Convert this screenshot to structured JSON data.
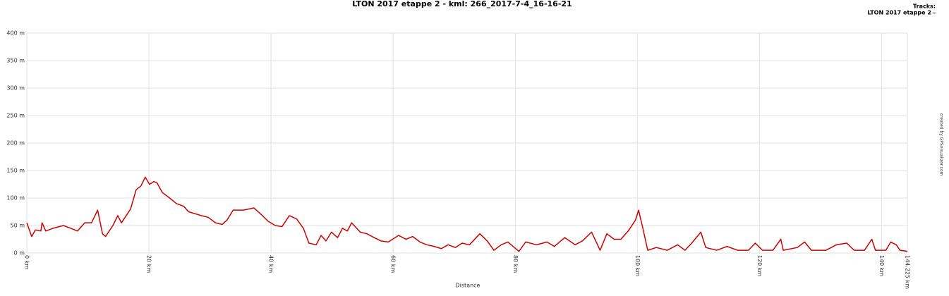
{
  "chart_data": {
    "type": "line",
    "title": "LTON 2017 etappe 2 - kml: 266_2017-7-4_16-16-21",
    "x_label": "Distance",
    "legend_title": "Tracks:",
    "credit": "created by GPSvisualizer.com",
    "legend": "top-right",
    "grid": true,
    "x": [
      0,
      0.8,
      1.4,
      2.3,
      2.5,
      3.1,
      4.3,
      6,
      7.2,
      8.3,
      9.5,
      10.6,
      11.6,
      12.4,
      12.9,
      14.1,
      14.9,
      15.5,
      16.4,
      17,
      17.9,
      18.7,
      19.4,
      20.1,
      20.8,
      21.3,
      22.2,
      23.4,
      24.5,
      25.7,
      26.5,
      27.4,
      28.6,
      29.7,
      30.9,
      32,
      32.8,
      33.8,
      35.5,
      37.2,
      38.4,
      39.5,
      40.7,
      41.8,
      43,
      44.2,
      45.3,
      46.2,
      47.4,
      48.2,
      49,
      49.9,
      50.9,
      51.7,
      52.5,
      53.2,
      54.6,
      55.7,
      56.9,
      58,
      59.2,
      60.9,
      62.1,
      63.2,
      64.4,
      65.5,
      66.7,
      67.9,
      69,
      70.2,
      71.3,
      72.5,
      74.2,
      75.4,
      76.5,
      77.7,
      78.8,
      80.6,
      81.7,
      83.5,
      85.2,
      86.4,
      88.1,
      89.8,
      91,
      92.5,
      93.9,
      95,
      96.2,
      97.3,
      98.5,
      99.7,
      100.2,
      100.8,
      101.7,
      103.1,
      104.9,
      106.6,
      107.8,
      108.9,
      110.4,
      111.2,
      113,
      114.7,
      116.4,
      118.2,
      119.3,
      120.5,
      122.2,
      123.5,
      123.9,
      126.2,
      127.4,
      128.5,
      130.9,
      132.6,
      134.3,
      135.5,
      137.2,
      138.4,
      139,
      140.7,
      141.5,
      142.4,
      143,
      144.225
    ],
    "series": [
      {
        "name": "LTON 2017 etappe 2 -",
        "color": "#cc0000",
        "values": [
          55,
          30,
          42,
          40,
          55,
          40,
          45,
          50,
          45,
          40,
          55,
          55,
          78,
          35,
          30,
          50,
          68,
          55,
          70,
          80,
          115,
          122,
          138,
          125,
          130,
          128,
          110,
          100,
          90,
          85,
          75,
          72,
          68,
          65,
          55,
          52,
          60,
          78,
          78,
          82,
          70,
          58,
          50,
          48,
          68,
          62,
          45,
          18,
          15,
          32,
          22,
          38,
          28,
          45,
          40,
          55,
          38,
          35,
          28,
          22,
          20,
          32,
          25,
          30,
          20,
          15,
          12,
          8,
          15,
          10,
          18,
          15,
          35,
          22,
          5,
          15,
          20,
          3,
          20,
          15,
          20,
          12,
          28,
          15,
          22,
          38,
          5,
          35,
          25,
          25,
          40,
          60,
          78,
          50,
          5,
          10,
          5,
          15,
          5,
          18,
          38,
          10,
          5,
          12,
          5,
          5,
          18,
          5,
          5,
          25,
          5,
          10,
          20,
          5,
          5,
          15,
          18,
          5,
          5,
          25,
          5,
          5,
          20,
          15,
          5,
          3
        ]
      }
    ],
    "xlim": [
      0,
      144.225
    ],
    "xticks": [
      {
        "value": 0,
        "label": "0 km"
      },
      {
        "value": 20,
        "label": "20 km"
      },
      {
        "value": 40,
        "label": "40 km"
      },
      {
        "value": 60,
        "label": "60 km"
      },
      {
        "value": 80,
        "label": "80 km"
      },
      {
        "value": 100,
        "label": "100 km"
      },
      {
        "value": 120,
        "label": "120 km"
      },
      {
        "value": 140,
        "label": "140 km"
      },
      {
        "value": 144.225,
        "label": "144.225 km"
      }
    ],
    "ylim": [
      0,
      400
    ],
    "yticks": [
      {
        "value": 0,
        "label": "0 m"
      },
      {
        "value": 50,
        "label": "50 m"
      },
      {
        "value": 100,
        "label": "100 m"
      },
      {
        "value": 150,
        "label": "150 m"
      },
      {
        "value": 200,
        "label": "200 m"
      },
      {
        "value": 250,
        "label": "250 m"
      },
      {
        "value": 300,
        "label": "300 m"
      },
      {
        "value": 350,
        "label": "350 m"
      },
      {
        "value": 400,
        "label": "400 m"
      }
    ]
  }
}
